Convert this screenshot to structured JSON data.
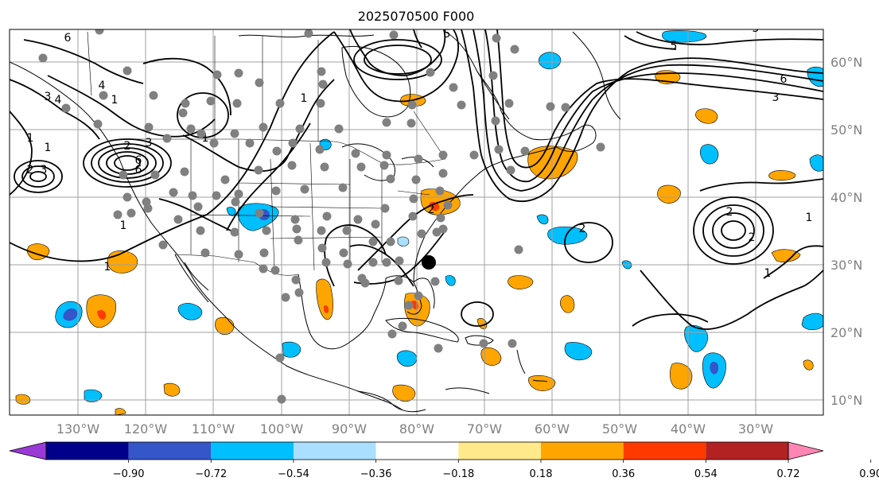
{
  "title": "2025070500 F000",
  "longitude_labels": [
    "130°W",
    "120°W",
    "110°W",
    "100°W",
    "90°W",
    "80°W",
    "70°W",
    "60°W",
    "50°W",
    "40°W",
    "30°W"
  ],
  "latitude_labels": [
    "60°N",
    "50°N",
    "40°N",
    "30°N",
    "20°N",
    "10°N"
  ],
  "colorbar": {
    "colors": [
      "#9a3ad6",
      "#00008b",
      "#3456c8",
      "#00bfff",
      "#aadfff",
      "#ffffff",
      "#ffe98a",
      "#ffa500",
      "#ff3a00",
      "#b22222",
      "#ff85b4"
    ],
    "tick_labels": [
      "−0.90",
      "−0.72",
      "−0.54",
      "−0.36",
      "−0.18",
      "0.18",
      "0.36",
      "0.54",
      "0.72",
      "0.90"
    ]
  },
  "contour_labels": [
    "6",
    "4",
    "1",
    "1",
    "2",
    "3",
    "6",
    "2",
    "1",
    "1",
    "5",
    "1",
    "2",
    "3",
    "6",
    "3",
    "4",
    "1",
    "5",
    "5",
    "3",
    "2",
    "6",
    "2",
    "1",
    "1",
    "2",
    "1"
  ],
  "marker_color_obs": "#808080",
  "marker_color_center": "#000000",
  "grid_color": "#a0a0a0"
}
